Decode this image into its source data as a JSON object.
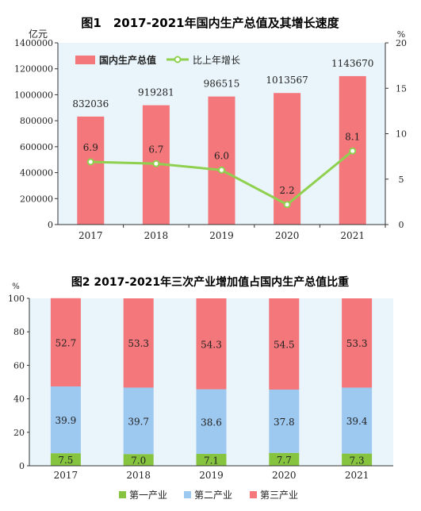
{
  "chart_data": [
    {
      "type": "bar",
      "title": "图1　2017-2021年国内生产总值及其增长速度",
      "y_unit_left": "亿元",
      "y_unit_right": "%",
      "categories": [
        "2017",
        "2018",
        "2019",
        "2020",
        "2021"
      ],
      "series": [
        {
          "name": "国内生产总值",
          "type": "bar",
          "axis": "left",
          "color": "#f4777b",
          "values": [
            832036,
            919281,
            986515,
            1013567,
            1143670
          ]
        },
        {
          "name": "比上年增长",
          "type": "line",
          "axis": "right",
          "color": "#8fd14f",
          "values": [
            6.9,
            6.7,
            6.0,
            2.2,
            8.1
          ]
        }
      ],
      "value_labels": [
        "832036",
        "919281",
        "986515",
        "1013567",
        "1143670"
      ],
      "growth_labels": [
        "6.9",
        "6.7",
        "6.0",
        "2.2",
        "8.1"
      ],
      "ylim_left": [
        0,
        1400000
      ],
      "yticks_left": [
        "0",
        "200000",
        "400000",
        "600000",
        "800000",
        "1000000",
        "1200000",
        "1400000"
      ],
      "ylim_right": [
        0,
        20
      ],
      "yticks_right": [
        "0",
        "5",
        "10",
        "15",
        "20"
      ],
      "legend": "top-left",
      "background": "#e9f5fb"
    },
    {
      "type": "stacked-bar",
      "title": "图2 2017-2021年三次产业增加值占国内生产总值比重",
      "y_unit": "%",
      "categories": [
        "2017",
        "2018",
        "2019",
        "2020",
        "2021"
      ],
      "series": [
        {
          "name": "第一产业",
          "color": "#86c440",
          "values": [
            7.5,
            7.0,
            7.1,
            7.7,
            7.3
          ],
          "labels": [
            "7.5",
            "7.0",
            "7.1",
            "7.7",
            "7.3"
          ]
        },
        {
          "name": "第二产业",
          "color": "#9dc8f0",
          "values": [
            39.9,
            39.7,
            38.6,
            37.8,
            39.4
          ],
          "labels": [
            "39.9",
            "39.7",
            "38.6",
            "37.8",
            "39.4"
          ]
        },
        {
          "name": "第三产业",
          "color": "#f4777b",
          "values": [
            52.7,
            53.3,
            54.3,
            54.5,
            53.3
          ],
          "labels": [
            "52.7",
            "53.3",
            "54.3",
            "54.5",
            "53.3"
          ]
        }
      ],
      "ylim": [
        0,
        100
      ],
      "yticks": [
        "0",
        "20",
        "40",
        "60",
        "80",
        "100"
      ],
      "legend": "bottom",
      "background": "#e9f5fb"
    }
  ]
}
